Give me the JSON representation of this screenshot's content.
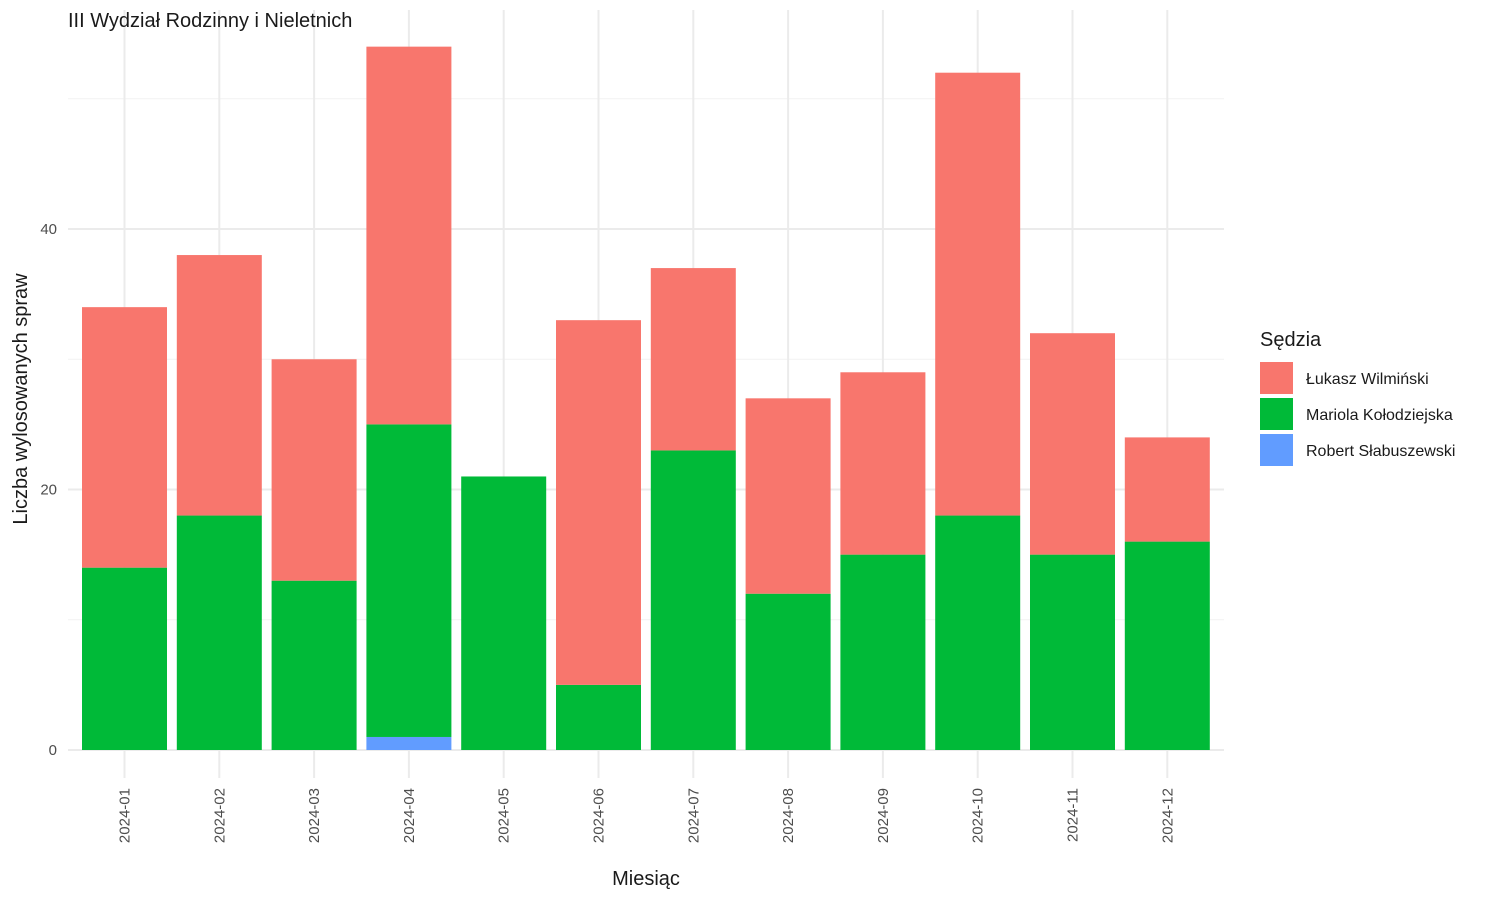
{
  "chart_data": {
    "type": "bar",
    "stacked": true,
    "title": "III Wydział Rodzinny i Nieletnich",
    "xlabel": "Miesiąc",
    "ylabel": "Liczba wylosowanych spraw",
    "ylim": [
      0,
      55
    ],
    "yticks": [
      0,
      20,
      40
    ],
    "grid": true,
    "legend": {
      "title": "Sędzia",
      "position": "right"
    },
    "categories": [
      "2024-01",
      "2024-02",
      "2024-03",
      "2024-04",
      "2024-05",
      "2024-06",
      "2024-07",
      "2024-08",
      "2024-09",
      "2024-10",
      "2024-11",
      "2024-12"
    ],
    "series": [
      {
        "name": "Robert Słabuszewski",
        "color": "#619CFF",
        "values": [
          0,
          0,
          0,
          1,
          0,
          0,
          0,
          0,
          0,
          0,
          0,
          0
        ]
      },
      {
        "name": "Mariola Kołodziejska",
        "color": "#00BA38",
        "values": [
          14,
          18,
          13,
          24,
          21,
          5,
          23,
          12,
          15,
          18,
          15,
          16
        ]
      },
      {
        "name": "Łukasz Wilmiński",
        "color": "#F8766D",
        "values": [
          20,
          20,
          17,
          29,
          0,
          28,
          14,
          15,
          14,
          34,
          17,
          8
        ]
      }
    ],
    "legend_order": [
      "Łukasz Wilmiński",
      "Mariola Kołodziejska",
      "Robert Słabuszewski"
    ]
  }
}
